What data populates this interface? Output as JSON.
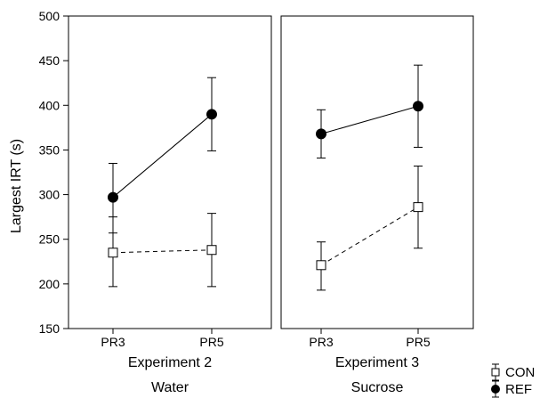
{
  "chart_data": {
    "type": "line",
    "ylabel": "Largest IRT (s)",
    "ylim": [
      150,
      500
    ],
    "yticks": [
      150,
      200,
      250,
      300,
      350,
      400,
      450,
      500
    ],
    "categories": [
      "PR3",
      "PR5"
    ],
    "legend_position": "bottom-right",
    "panels": [
      {
        "xlabel_line1": "Experiment 2",
        "xlabel_line2": "Water",
        "series": [
          {
            "name": "CON",
            "marker": "open-square",
            "line": "dashed",
            "values": [
              235,
              238
            ],
            "error_low": [
              197,
              197
            ],
            "error_high": [
              275,
              279
            ]
          },
          {
            "name": "REF",
            "marker": "filled-circle",
            "line": "solid",
            "values": [
              297,
              390
            ],
            "error_low": [
              257,
              349
            ],
            "error_high": [
              335,
              431
            ]
          }
        ]
      },
      {
        "xlabel_line1": "Experiment 3",
        "xlabel_line2": "Sucrose",
        "series": [
          {
            "name": "CON",
            "marker": "open-square",
            "line": "dashed",
            "values": [
              221,
              286
            ],
            "error_low": [
              193,
              240
            ],
            "error_high": [
              247,
              332
            ]
          },
          {
            "name": "REF",
            "marker": "filled-circle",
            "line": "solid",
            "values": [
              368,
              399
            ],
            "error_low": [
              341,
              353
            ],
            "error_high": [
              395,
              445
            ]
          }
        ]
      }
    ]
  }
}
